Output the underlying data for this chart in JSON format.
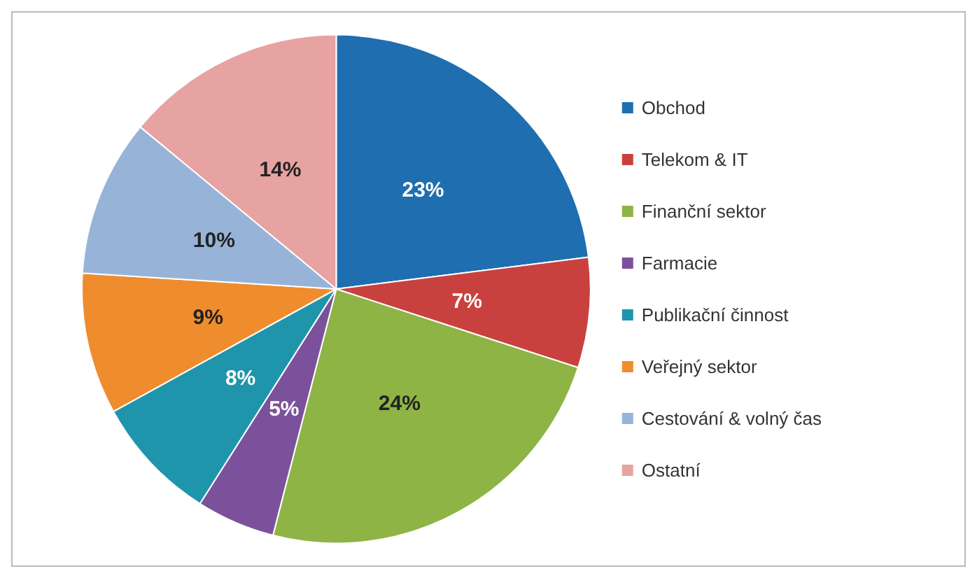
{
  "chart_data": {
    "type": "pie",
    "categories": [
      "Obchod",
      "Telekom & IT",
      "Finanční sektor",
      "Farmacie",
      "Publikační činnost",
      "Veřejný sektor",
      "Cestování & volný čas",
      "Ostatní"
    ],
    "values": [
      23,
      7,
      24,
      5,
      8,
      9,
      10,
      14
    ],
    "colors": [
      "#1f6eb0",
      "#c9413e",
      "#8db444",
      "#7b519b",
      "#1f95ab",
      "#ef8c2d",
      "#97b4d8",
      "#e6a3a1"
    ],
    "value_labels": [
      "23%",
      "7%",
      "24%",
      "5%",
      "8%",
      "9%",
      "10%",
      "14%"
    ],
    "legend": "right"
  }
}
